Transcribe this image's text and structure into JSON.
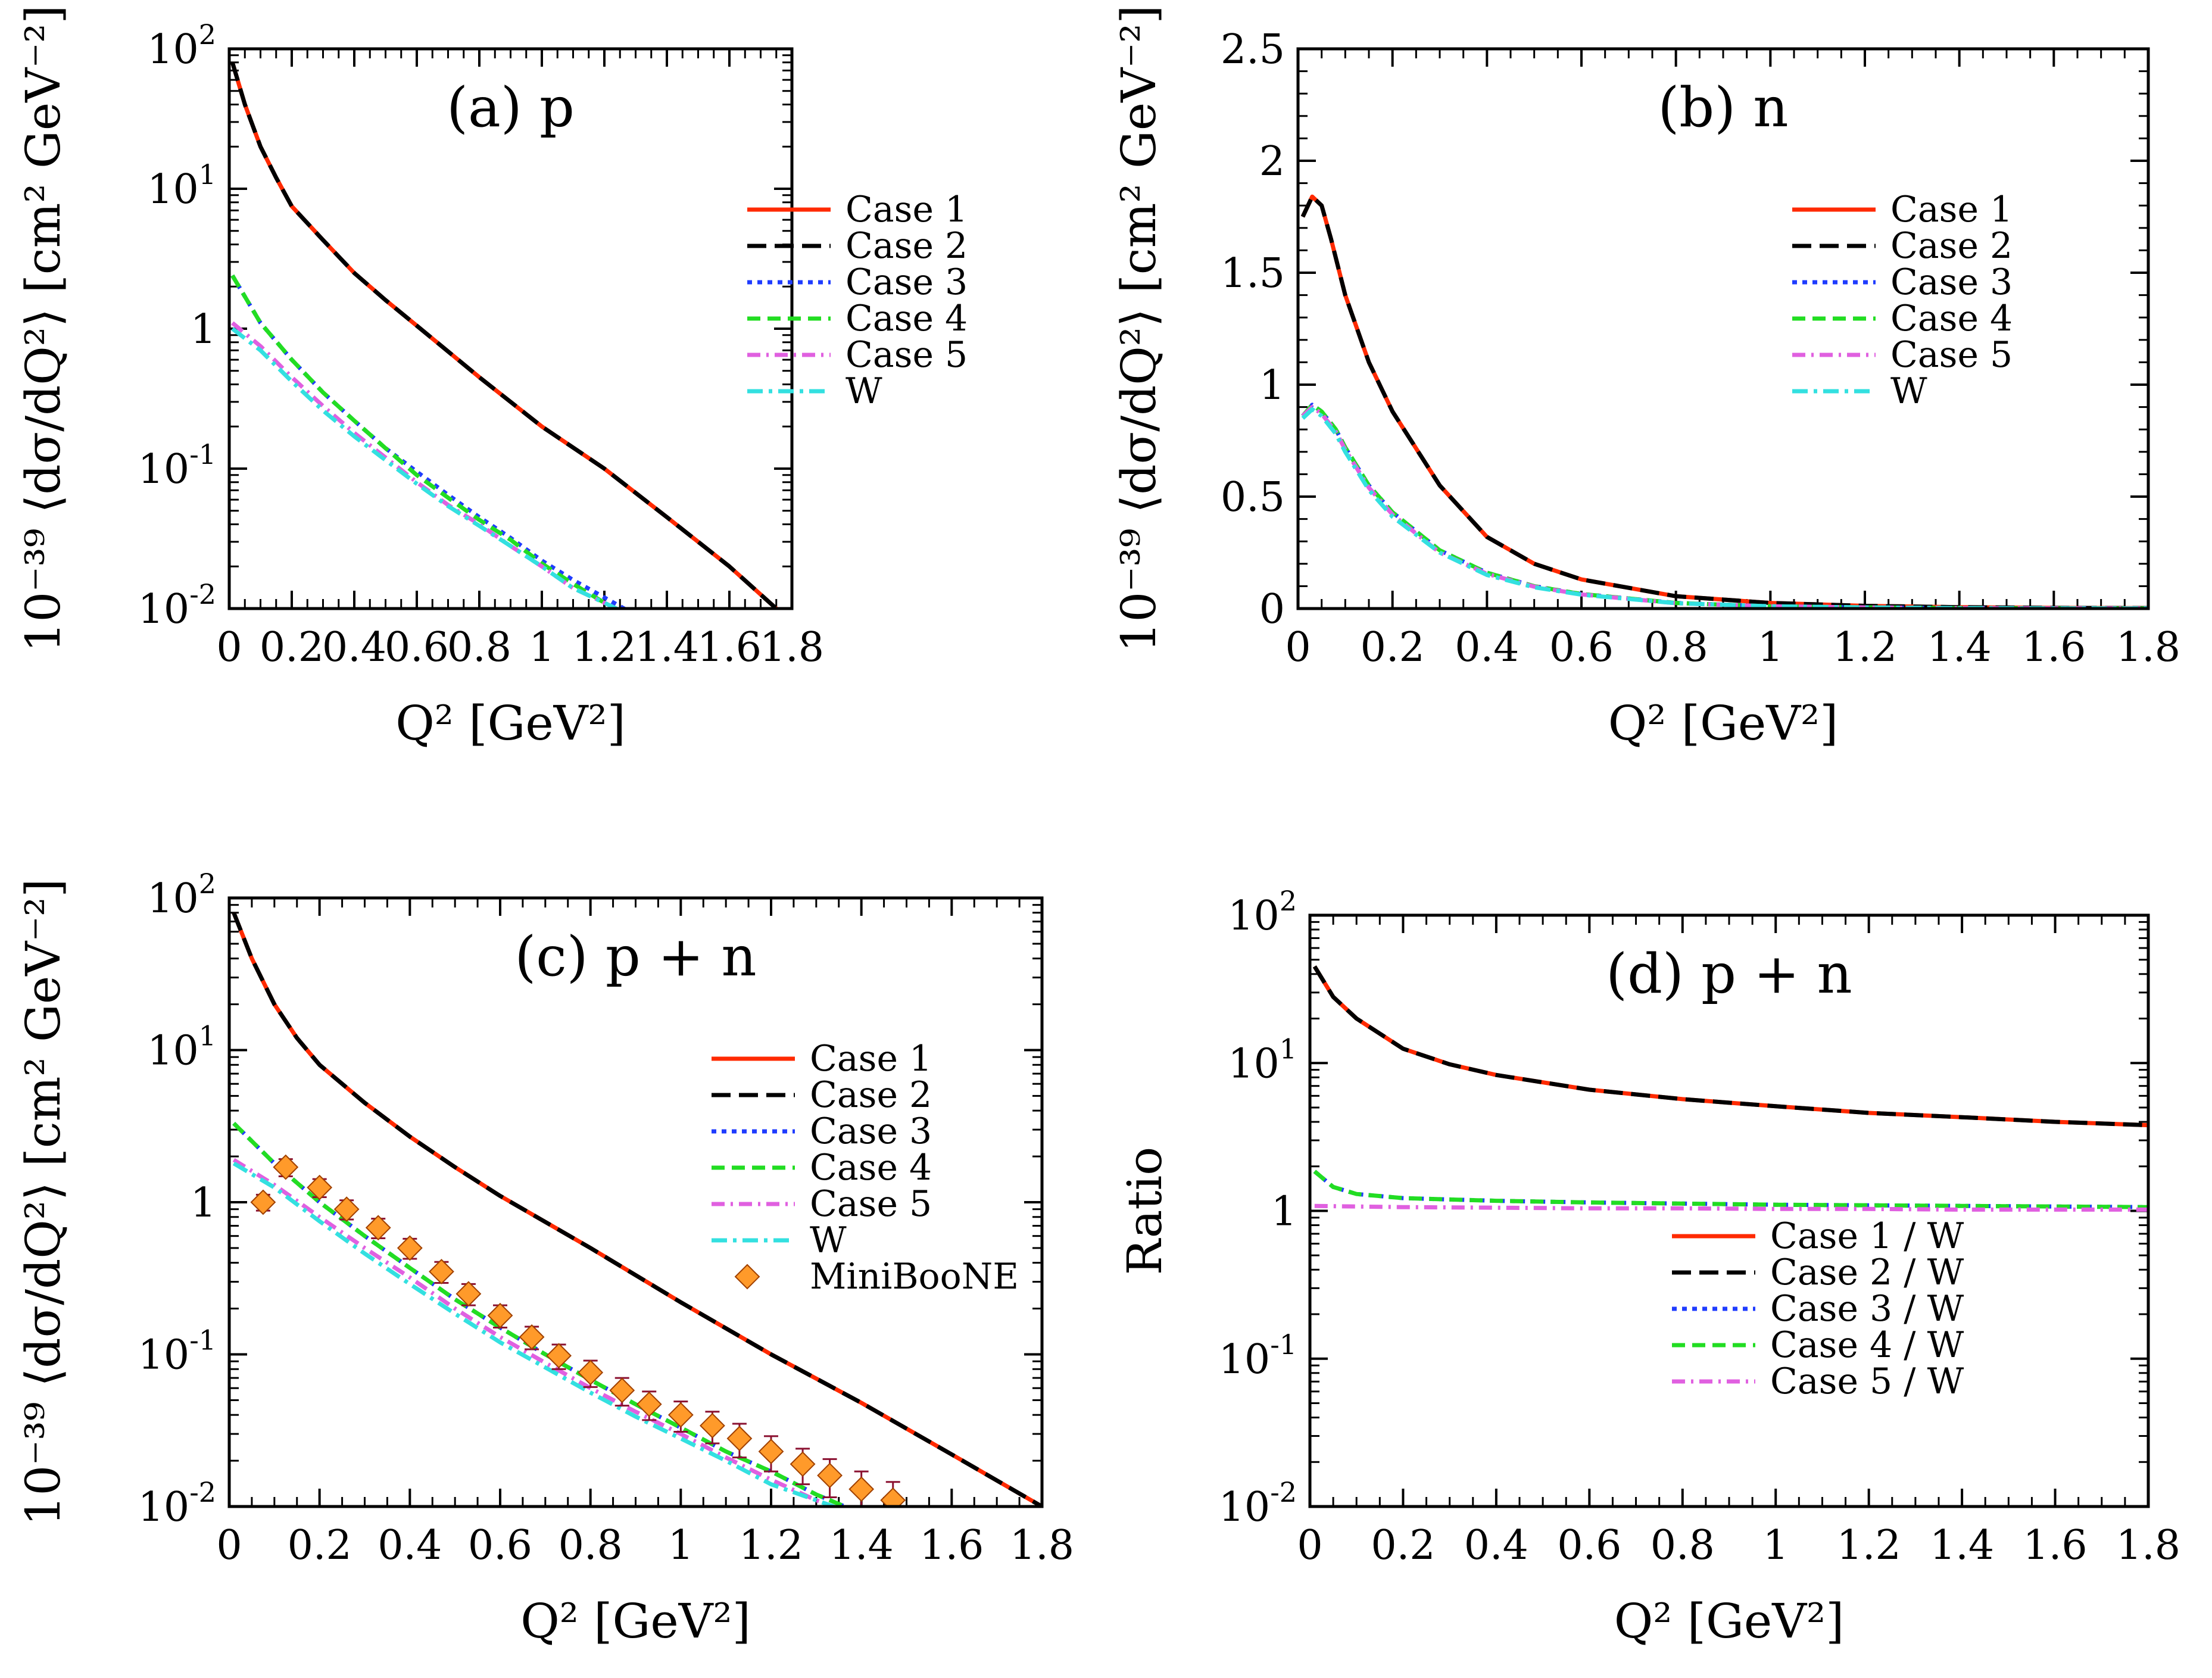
{
  "colors": {
    "Case 1": "#ff2a00",
    "Case 2": "#000000",
    "Case 3": "#1f3cff",
    "Case 4": "#22dd22",
    "Case 5": "#e060e0",
    "W": "#33e0e0",
    "MiniBooNE": "#ff9a2a",
    "MiniBooNE_edge": "#a04000",
    "errorbar": "#8a1030"
  },
  "chart_data": [
    {
      "type": "line",
      "title": "(a) p",
      "xlabel": "Q² [GeV²]",
      "ylabel": "10⁻³⁹ ⟨dσ/dQ²⟩ [cm² GeV⁻²]",
      "xlim": [
        0,
        1.8
      ],
      "ylim": [
        0.01,
        100
      ],
      "yscale": "log",
      "xticks": [
        "0",
        "0.2",
        "0.4",
        "0.6",
        "0.8",
        "1",
        "1.2",
        "1.4",
        "1.6",
        "1.8"
      ],
      "yticks": [
        {
          "base": "10",
          "exp": "-2"
        },
        {
          "base": "10",
          "exp": "-1"
        },
        {
          "base": "1",
          "exp": ""
        },
        {
          "base": "10",
          "exp": "1"
        },
        {
          "base": "10",
          "exp": "2"
        }
      ],
      "legend_position": "top-right",
      "legend": [
        "Case 1",
        "Case 2",
        "Case 3",
        "Case 4",
        "Case 5",
        "W"
      ],
      "series": [
        {
          "name": "Case 1",
          "x": [
            0.01,
            0.05,
            0.1,
            0.15,
            0.2,
            0.3,
            0.4,
            0.5,
            0.6,
            0.8,
            1.0,
            1.2,
            1.4,
            1.6,
            1.75
          ],
          "y": [
            80,
            40,
            20,
            12,
            7.5,
            4.3,
            2.5,
            1.6,
            1.05,
            0.45,
            0.2,
            0.1,
            0.045,
            0.02,
            0.01
          ]
        },
        {
          "name": "Case 2",
          "x": [
            0.01,
            0.05,
            0.1,
            0.15,
            0.2,
            0.3,
            0.4,
            0.5,
            0.6,
            0.8,
            1.0,
            1.2,
            1.4,
            1.6,
            1.75
          ],
          "y": [
            80,
            40,
            20,
            12,
            7.5,
            4.3,
            2.5,
            1.6,
            1.05,
            0.45,
            0.2,
            0.1,
            0.045,
            0.02,
            0.01
          ]
        },
        {
          "name": "Case 3",
          "x": [
            0.01,
            0.1,
            0.2,
            0.3,
            0.4,
            0.5,
            0.6,
            0.7,
            0.8,
            0.9,
            1.0,
            1.1,
            1.2,
            1.3
          ],
          "y": [
            2.4,
            1.1,
            0.6,
            0.35,
            0.22,
            0.14,
            0.095,
            0.065,
            0.045,
            0.032,
            0.022,
            0.016,
            0.012,
            0.009
          ]
        },
        {
          "name": "Case 4",
          "x": [
            0.01,
            0.1,
            0.2,
            0.3,
            0.4,
            0.5,
            0.6,
            0.7,
            0.8,
            0.9,
            1.0,
            1.1,
            1.2,
            1.3
          ],
          "y": [
            2.4,
            1.1,
            0.6,
            0.35,
            0.22,
            0.14,
            0.09,
            0.062,
            0.043,
            0.031,
            0.021,
            0.015,
            0.011,
            0.0085
          ]
        },
        {
          "name": "Case 5",
          "x": [
            0.01,
            0.1,
            0.2,
            0.3,
            0.4,
            0.5,
            0.6,
            0.7,
            0.8,
            0.9,
            1.0,
            1.1,
            1.2,
            1.28
          ],
          "y": [
            1.1,
            0.75,
            0.45,
            0.28,
            0.18,
            0.12,
            0.08,
            0.055,
            0.04,
            0.028,
            0.02,
            0.014,
            0.011,
            0.009
          ]
        },
        {
          "name": "W",
          "x": [
            0.01,
            0.1,
            0.2,
            0.3,
            0.4,
            0.5,
            0.6,
            0.7,
            0.8,
            0.9,
            1.0,
            1.1,
            1.2,
            1.28
          ],
          "y": [
            1.0,
            0.7,
            0.42,
            0.26,
            0.17,
            0.115,
            0.078,
            0.054,
            0.039,
            0.028,
            0.02,
            0.014,
            0.011,
            0.009
          ]
        }
      ]
    },
    {
      "type": "line",
      "title": "(b) n",
      "xlabel": "Q² [GeV²]",
      "ylabel": "10⁻³⁹ ⟨dσ/dQ²⟩ [cm² GeV⁻²]",
      "xlim": [
        0,
        1.8
      ],
      "ylim": [
        0,
        2.5
      ],
      "yscale": "linear",
      "xticks": [
        "0",
        "0.2",
        "0.4",
        "0.6",
        "0.8",
        "1",
        "1.2",
        "1.4",
        "1.6",
        "1.8"
      ],
      "yticks": [
        {
          "base": "0",
          "exp": ""
        },
        {
          "base": "0.5",
          "exp": ""
        },
        {
          "base": "1",
          "exp": ""
        },
        {
          "base": "1.5",
          "exp": ""
        },
        {
          "base": "2",
          "exp": ""
        },
        {
          "base": "2.5",
          "exp": ""
        }
      ],
      "legend_position": "top-right",
      "legend": [
        "Case 1",
        "Case 2",
        "Case 3",
        "Case 4",
        "Case 5",
        "W"
      ],
      "series": [
        {
          "name": "Case 1",
          "x": [
            0.01,
            0.03,
            0.05,
            0.07,
            0.1,
            0.15,
            0.2,
            0.3,
            0.4,
            0.5,
            0.6,
            0.8,
            1.0,
            1.2,
            1.4,
            1.6,
            1.8
          ],
          "y": [
            1.75,
            1.84,
            1.8,
            1.65,
            1.4,
            1.1,
            0.88,
            0.55,
            0.32,
            0.2,
            0.13,
            0.055,
            0.025,
            0.012,
            0.006,
            0.003,
            0.002
          ]
        },
        {
          "name": "Case 2",
          "x": [
            0.01,
            0.03,
            0.05,
            0.07,
            0.1,
            0.15,
            0.2,
            0.3,
            0.4,
            0.5,
            0.6,
            0.8,
            1.0,
            1.2,
            1.4,
            1.6,
            1.8
          ],
          "y": [
            1.75,
            1.84,
            1.8,
            1.65,
            1.4,
            1.1,
            0.88,
            0.55,
            0.32,
            0.2,
            0.13,
            0.055,
            0.025,
            0.012,
            0.006,
            0.003,
            0.002
          ]
        },
        {
          "name": "Case 3",
          "x": [
            0.01,
            0.03,
            0.05,
            0.08,
            0.1,
            0.15,
            0.2,
            0.3,
            0.4,
            0.5,
            0.6,
            0.8,
            1.0,
            1.2,
            1.4,
            1.6,
            1.8
          ],
          "y": [
            0.86,
            0.91,
            0.88,
            0.8,
            0.72,
            0.55,
            0.43,
            0.26,
            0.16,
            0.1,
            0.065,
            0.025,
            0.01,
            0.005,
            0.002,
            0.001,
            0.0005
          ]
        },
        {
          "name": "Case 4",
          "x": [
            0.01,
            0.03,
            0.05,
            0.08,
            0.1,
            0.15,
            0.2,
            0.3,
            0.4,
            0.5,
            0.6,
            0.8,
            1.0,
            1.2,
            1.4,
            1.6,
            1.8
          ],
          "y": [
            0.86,
            0.91,
            0.88,
            0.8,
            0.72,
            0.55,
            0.43,
            0.26,
            0.16,
            0.1,
            0.065,
            0.025,
            0.01,
            0.005,
            0.002,
            0.001,
            0.0005
          ]
        },
        {
          "name": "Case 5",
          "x": [
            0.01,
            0.03,
            0.05,
            0.08,
            0.1,
            0.15,
            0.2,
            0.3,
            0.4,
            0.5,
            0.6,
            0.8,
            1.0,
            1.2,
            1.4,
            1.6,
            1.8
          ],
          "y": [
            0.86,
            0.9,
            0.87,
            0.79,
            0.71,
            0.54,
            0.42,
            0.25,
            0.155,
            0.098,
            0.063,
            0.024,
            0.01,
            0.005,
            0.002,
            0.001,
            0.0005
          ]
        },
        {
          "name": "W",
          "x": [
            0.01,
            0.03,
            0.05,
            0.08,
            0.1,
            0.15,
            0.2,
            0.3,
            0.4,
            0.5,
            0.6,
            0.8,
            1.0,
            1.2,
            1.4,
            1.6,
            1.8
          ],
          "y": [
            0.85,
            0.89,
            0.86,
            0.78,
            0.7,
            0.53,
            0.41,
            0.25,
            0.15,
            0.095,
            0.062,
            0.024,
            0.01,
            0.005,
            0.002,
            0.001,
            0.0005
          ]
        }
      ]
    },
    {
      "type": "line",
      "title": "(c) p + n",
      "xlabel": "Q² [GeV²]",
      "ylabel": "10⁻³⁹ ⟨dσ/dQ²⟩ [cm² GeV⁻²]",
      "xlim": [
        0,
        1.8
      ],
      "ylim": [
        0.01,
        100
      ],
      "yscale": "log",
      "xticks": [
        "0",
        "0.2",
        "0.4",
        "0.6",
        "0.8",
        "1",
        "1.2",
        "1.4",
        "1.6",
        "1.8"
      ],
      "yticks": [
        {
          "base": "10",
          "exp": "-2"
        },
        {
          "base": "10",
          "exp": "-1"
        },
        {
          "base": "1",
          "exp": ""
        },
        {
          "base": "10",
          "exp": "1"
        },
        {
          "base": "10",
          "exp": "2"
        }
      ],
      "legend_position": "top-right",
      "legend": [
        "Case 1",
        "Case 2",
        "Case 3",
        "Case 4",
        "Case 5",
        "W",
        "MiniBooNE"
      ],
      "series": [
        {
          "name": "Case 1",
          "x": [
            0.01,
            0.05,
            0.1,
            0.15,
            0.2,
            0.3,
            0.4,
            0.5,
            0.6,
            0.8,
            1.0,
            1.2,
            1.4,
            1.6,
            1.8
          ],
          "y": [
            80,
            40,
            20,
            12,
            8,
            4.5,
            2.7,
            1.7,
            1.1,
            0.5,
            0.22,
            0.1,
            0.048,
            0.022,
            0.01
          ]
        },
        {
          "name": "Case 2",
          "x": [
            0.01,
            0.05,
            0.1,
            0.15,
            0.2,
            0.3,
            0.4,
            0.5,
            0.6,
            0.8,
            1.0,
            1.2,
            1.4,
            1.6,
            1.8
          ],
          "y": [
            80,
            40,
            20,
            12,
            8,
            4.5,
            2.7,
            1.7,
            1.1,
            0.5,
            0.22,
            0.1,
            0.048,
            0.022,
            0.01
          ]
        },
        {
          "name": "Case 3",
          "x": [
            0.01,
            0.1,
            0.2,
            0.3,
            0.4,
            0.5,
            0.6,
            0.7,
            0.8,
            0.9,
            1.0,
            1.1,
            1.2,
            1.3,
            1.4
          ],
          "y": [
            3.3,
            1.8,
            1.0,
            0.6,
            0.37,
            0.23,
            0.15,
            0.1,
            0.068,
            0.047,
            0.033,
            0.023,
            0.017,
            0.012,
            0.009
          ]
        },
        {
          "name": "Case 4",
          "x": [
            0.01,
            0.1,
            0.2,
            0.3,
            0.4,
            0.5,
            0.6,
            0.7,
            0.8,
            0.9,
            1.0,
            1.1,
            1.2,
            1.3,
            1.4
          ],
          "y": [
            3.3,
            1.8,
            1.0,
            0.6,
            0.37,
            0.23,
            0.15,
            0.1,
            0.068,
            0.047,
            0.033,
            0.023,
            0.017,
            0.012,
            0.009
          ]
        },
        {
          "name": "Case 5",
          "x": [
            0.01,
            0.1,
            0.2,
            0.3,
            0.4,
            0.5,
            0.6,
            0.7,
            0.8,
            0.9,
            1.0,
            1.1,
            1.2,
            1.3,
            1.38
          ],
          "y": [
            1.9,
            1.3,
            0.8,
            0.5,
            0.32,
            0.2,
            0.13,
            0.088,
            0.06,
            0.042,
            0.03,
            0.021,
            0.015,
            0.011,
            0.009
          ]
        },
        {
          "name": "W",
          "x": [
            0.01,
            0.1,
            0.2,
            0.3,
            0.4,
            0.5,
            0.6,
            0.7,
            0.8,
            0.9,
            1.0,
            1.1,
            1.2,
            1.3,
            1.38
          ],
          "y": [
            1.8,
            1.25,
            0.75,
            0.46,
            0.29,
            0.185,
            0.12,
            0.082,
            0.056,
            0.039,
            0.028,
            0.02,
            0.014,
            0.011,
            0.009
          ]
        }
      ],
      "points": {
        "name": "MiniBooNE",
        "x": [
          0.075,
          0.125,
          0.2,
          0.26,
          0.33,
          0.4,
          0.47,
          0.53,
          0.6,
          0.67,
          0.73,
          0.8,
          0.87,
          0.93,
          1.0,
          1.07,
          1.13,
          1.2,
          1.27,
          1.33,
          1.4,
          1.47
        ],
        "y": [
          1.0,
          1.7,
          1.25,
          0.9,
          0.68,
          0.5,
          0.35,
          0.25,
          0.18,
          0.13,
          0.098,
          0.076,
          0.058,
          0.047,
          0.04,
          0.034,
          0.028,
          0.023,
          0.019,
          0.016,
          0.013,
          0.011
        ],
        "yerr": [
          0.12,
          0.22,
          0.17,
          0.13,
          0.1,
          0.075,
          0.055,
          0.04,
          0.03,
          0.022,
          0.018,
          0.015,
          0.012,
          0.01,
          0.009,
          0.008,
          0.007,
          0.006,
          0.005,
          0.0045,
          0.004,
          0.0035
        ]
      }
    },
    {
      "type": "line",
      "title": "(d) p + n",
      "xlabel": "Q² [GeV²]",
      "ylabel": "Ratio",
      "xlim": [
        0,
        1.8
      ],
      "ylim": [
        0.01,
        100
      ],
      "yscale": "log",
      "xticks": [
        "0",
        "0.2",
        "0.4",
        "0.6",
        "0.8",
        "1",
        "1.2",
        "1.4",
        "1.6",
        "1.8"
      ],
      "yticks": [
        {
          "base": "10",
          "exp": "-2"
        },
        {
          "base": "10",
          "exp": "-1"
        },
        {
          "base": "1",
          "exp": ""
        },
        {
          "base": "10",
          "exp": "1"
        },
        {
          "base": "10",
          "exp": "2"
        }
      ],
      "legend_position": "bottom-right",
      "legend": [
        "Case 1 / W",
        "Case 2 / W",
        "Case 3 / W",
        "Case 4 / W",
        "Case 5 / W"
      ],
      "series": [
        {
          "name": "Case 1 / W",
          "x": [
            0.01,
            0.05,
            0.1,
            0.2,
            0.3,
            0.4,
            0.6,
            0.8,
            1.0,
            1.2,
            1.4,
            1.6,
            1.8
          ],
          "y": [
            45,
            28,
            20,
            12.5,
            9.8,
            8.3,
            6.6,
            5.7,
            5.1,
            4.6,
            4.3,
            4.0,
            3.8
          ]
        },
        {
          "name": "Case 2 / W",
          "x": [
            0.01,
            0.05,
            0.1,
            0.2,
            0.3,
            0.4,
            0.6,
            0.8,
            1.0,
            1.2,
            1.4,
            1.6,
            1.8
          ],
          "y": [
            45,
            28,
            20,
            12.5,
            9.8,
            8.3,
            6.6,
            5.7,
            5.1,
            4.6,
            4.3,
            4.0,
            3.8
          ]
        },
        {
          "name": "Case 3 / W",
          "x": [
            0.01,
            0.05,
            0.1,
            0.2,
            0.4,
            0.6,
            0.8,
            1.0,
            1.2,
            1.4,
            1.6,
            1.8
          ],
          "y": [
            1.85,
            1.45,
            1.3,
            1.22,
            1.17,
            1.14,
            1.12,
            1.1,
            1.09,
            1.08,
            1.07,
            1.06
          ]
        },
        {
          "name": "Case 4 / W",
          "x": [
            0.01,
            0.05,
            0.1,
            0.2,
            0.4,
            0.6,
            0.8,
            1.0,
            1.2,
            1.4,
            1.6,
            1.8
          ],
          "y": [
            1.85,
            1.45,
            1.3,
            1.22,
            1.17,
            1.14,
            1.12,
            1.1,
            1.09,
            1.08,
            1.07,
            1.06
          ]
        },
        {
          "name": "Case 5 / W",
          "x": [
            0.01,
            0.1,
            0.2,
            0.4,
            0.6,
            0.8,
            1.0,
            1.2,
            1.4,
            1.6,
            1.8
          ],
          "y": [
            1.08,
            1.07,
            1.06,
            1.05,
            1.04,
            1.04,
            1.03,
            1.03,
            1.02,
            1.02,
            1.02
          ]
        }
      ]
    }
  ]
}
